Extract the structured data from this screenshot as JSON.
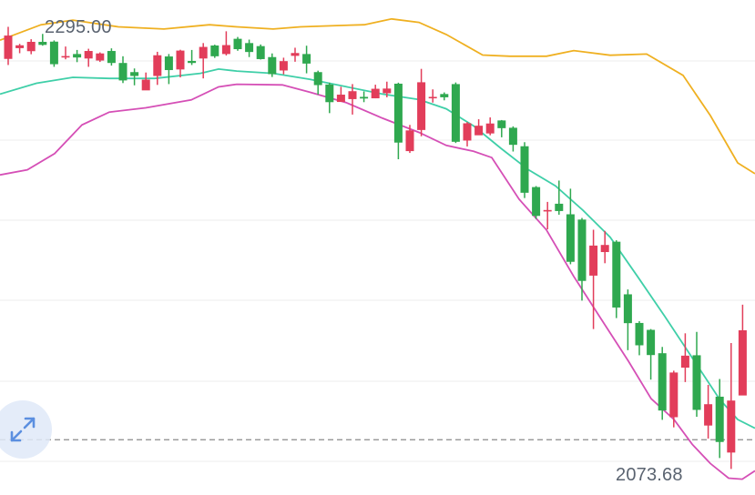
{
  "chart": {
    "max_label": "2295.00",
    "min_label": "2073.68"
  },
  "colors": {
    "up": "#e23d5a",
    "down": "#2fa84f",
    "upper_band": "#efb021",
    "middle_band": "#3fcfa8",
    "lower_band": "#d54fb6",
    "grid": "#ececec",
    "reference_line": "#8a8a8a",
    "expand_icon": "#5b8fe0"
  },
  "icons": {
    "expand": "expand-arrows-icon"
  },
  "chart_data": {
    "type": "candlestick",
    "y_range": [
      2063.5,
      2307.2
    ],
    "reference_level": 2090.7,
    "max_price": 2295.0,
    "min_price": 2073.68,
    "candles": [
      [
        2278.2,
        2289.7,
        2294.0,
        2275.2
      ],
      [
        2283.5,
        2284.9,
        2285.6,
        2281.0
      ],
      [
        2282.0,
        2286.6,
        2287.9,
        2280.5
      ],
      [
        2286.6,
        2285.1,
        2290.5,
        2284.7
      ],
      [
        2286.7,
        2275.6,
        2287.3,
        2274.3
      ],
      [
        2279.6,
        2279.6,
        2284.3,
        2278.0
      ],
      [
        2280.6,
        2278.9,
        2282.6,
        2276.6
      ],
      [
        2278.4,
        2282.1,
        2283.2,
        2274.3
      ],
      [
        2277.4,
        2280.9,
        2281.4,
        2276.7
      ],
      [
        2282.1,
        2276.2,
        2283.4,
        2274.9
      ],
      [
        2276.2,
        2267.6,
        2279.5,
        2266.3
      ],
      [
        2271.7,
        2269.8,
        2273.5,
        2265.2
      ],
      [
        2262.7,
        2268.0,
        2271.5,
        2262.9
      ],
      [
        2269.8,
        2280.0,
        2281.7,
        2265.4
      ],
      [
        2279.4,
        2272.7,
        2280.6,
        2265.8
      ],
      [
        2273.0,
        2282.3,
        2282.7,
        2269.1
      ],
      [
        2277.2,
        2276.2,
        2282.6,
        2275.2
      ],
      [
        2278.4,
        2284.1,
        2286.0,
        2268.6
      ],
      [
        2284.8,
        2279.5,
        2285.2,
        2278.7
      ],
      [
        2280.6,
        2285.0,
        2291.8,
        2279.9
      ],
      [
        2288.1,
        2283.0,
        2289.0,
        2282.2
      ],
      [
        2286.0,
        2281.6,
        2287.7,
        2279.1
      ],
      [
        2284.5,
        2278.1,
        2285.3,
        2277.9
      ],
      [
        2279.1,
        2270.7,
        2280.9,
        2269.3
      ],
      [
        2272.5,
        2277.1,
        2278.8,
        2270.6
      ],
      [
        2279.7,
        2281.1,
        2283.7,
        2276.8
      ],
      [
        2280.6,
        2275.9,
        2284.7,
        2271.1
      ],
      [
        2271.7,
        2265.3,
        2272.4,
        2260.7
      ],
      [
        2265.6,
        2256.9,
        2266.5,
        2251.5
      ],
      [
        2257.0,
        2260.6,
        2264.5,
        2257.2
      ],
      [
        2258.4,
        2262.3,
        2265.8,
        2250.8
      ],
      [
        2259.5,
        2258.7,
        2262.2,
        2256.9
      ],
      [
        2258.8,
        2263.5,
        2265.5,
        2258.8
      ],
      [
        2261.3,
        2263.6,
        2267.0,
        2259.3
      ],
      [
        2266.0,
        2237.0,
        2266.5,
        2228.8
      ],
      [
        2232.8,
        2243.0,
        2245.7,
        2231.9
      ],
      [
        2243.2,
        2266.7,
        2273.3,
        2240.1
      ],
      [
        2259.5,
        2259.5,
        2263.2,
        2256.7
      ],
      [
        2260.9,
        2259.3,
        2261.7,
        2257.8
      ],
      [
        2265.8,
        2237.4,
        2266.6,
        2236.8
      ],
      [
        2238.0,
        2246.5,
        2247.1,
        2235.1
      ],
      [
        2240.6,
        2245.3,
        2248.5,
        2241.3
      ],
      [
        2241.5,
        2246.4,
        2249.4,
        2240.6
      ],
      [
        2247.9,
        2244.1,
        2248.1,
        2239.6
      ],
      [
        2244.3,
        2235.9,
        2245.0,
        2232.6
      ],
      [
        2235.2,
        2212.3,
        2237.2,
        2209.7
      ],
      [
        2215.1,
        2200.9,
        2215.6,
        2199.4
      ],
      [
        2203.8,
        2203.8,
        2207.8,
        2194.3
      ],
      [
        2206.9,
        2203.3,
        2218.3,
        2201.5
      ],
      [
        2201.7,
        2178.3,
        2214.3,
        2177.1
      ],
      [
        2199.1,
        2168.9,
        2199.9,
        2159.2
      ],
      [
        2171.5,
        2186.3,
        2194.1,
        2145.2
      ],
      [
        2183.1,
        2186.6,
        2193.5,
        2177.6
      ],
      [
        2188.2,
        2155.8,
        2188.9,
        2150.6
      ],
      [
        2162.3,
        2148.1,
        2164.7,
        2134.8
      ],
      [
        2148.2,
        2137.2,
        2149.1,
        2132.3
      ],
      [
        2144.8,
        2132.4,
        2145.2,
        2120.3
      ],
      [
        2133.3,
        2105.1,
        2136.4,
        2100.5
      ],
      [
        2101.8,
        2123.8,
        2124.7,
        2096.8
      ],
      [
        2126.2,
        2132.1,
        2143.1,
        2119.1
      ],
      [
        2132.3,
        2105.4,
        2143.8,
        2102.0
      ],
      [
        2097.7,
        2108.2,
        2117.7,
        2091.3
      ],
      [
        2111.9,
        2089.6,
        2120.6,
        2081.7
      ],
      [
        2084.4,
        2110.0,
        2138.3,
        2076.3
      ],
      [
        2112.5,
        2144.6,
        2157.2,
        2112.7
      ]
    ],
    "upper_band": [
      [
        0,
        2287.4
      ],
      [
        45,
        2295.0
      ],
      [
        80,
        2297.3
      ],
      [
        130,
        2294.0
      ],
      [
        180,
        2292.9
      ],
      [
        230,
        2295.0
      ],
      [
        260,
        2294.0
      ],
      [
        300,
        2292.9
      ],
      [
        330,
        2294.0
      ],
      [
        370,
        2294.6
      ],
      [
        400,
        2295.0
      ],
      [
        430,
        2297.9
      ],
      [
        460,
        2296.2
      ],
      [
        490,
        2290.2
      ],
      [
        530,
        2280.1
      ],
      [
        560,
        2279.5
      ],
      [
        600,
        2279.5
      ],
      [
        630,
        2282.3
      ],
      [
        670,
        2280.0
      ],
      [
        710,
        2280.6
      ],
      [
        750,
        2270.1
      ],
      [
        780,
        2250.3
      ],
      [
        810,
        2227.0
      ],
      [
        829,
        2221.7
      ]
    ],
    "middle_band": [
      [
        0,
        2260.9
      ],
      [
        40,
        2266.2
      ],
      [
        80,
        2269.1
      ],
      [
        120,
        2268.6
      ],
      [
        170,
        2268.6
      ],
      [
        220,
        2271.1
      ],
      [
        240,
        2273.2
      ],
      [
        260,
        2272.2
      ],
      [
        300,
        2271.1
      ],
      [
        340,
        2268.2
      ],
      [
        380,
        2264.5
      ],
      [
        420,
        2260.9
      ],
      [
        460,
        2258.2
      ],
      [
        490,
        2253.6
      ],
      [
        520,
        2245.2
      ],
      [
        550,
        2234.2
      ],
      [
        580,
        2223.7
      ],
      [
        610,
        2215.7
      ],
      [
        640,
        2203.7
      ],
      [
        670,
        2190.4
      ],
      [
        700,
        2171.1
      ],
      [
        730,
        2151.4
      ],
      [
        760,
        2131.1
      ],
      [
        790,
        2110.7
      ],
      [
        810,
        2100.7
      ],
      [
        829,
        2096.4
      ]
    ],
    "lower_band": [
      [
        0,
        2221.1
      ],
      [
        30,
        2223.6
      ],
      [
        60,
        2231.6
      ],
      [
        90,
        2245.7
      ],
      [
        120,
        2252.0
      ],
      [
        160,
        2254.1
      ],
      [
        210,
        2258.0
      ],
      [
        240,
        2264.4
      ],
      [
        260,
        2265.7
      ],
      [
        310,
        2265.4
      ],
      [
        340,
        2261.8
      ],
      [
        380,
        2256.7
      ],
      [
        420,
        2249.0
      ],
      [
        460,
        2242.0
      ],
      [
        490,
        2235.6
      ],
      [
        520,
        2232.7
      ],
      [
        540,
        2229.6
      ],
      [
        570,
        2209.1
      ],
      [
        600,
        2194.0
      ],
      [
        630,
        2171.1
      ],
      [
        660,
        2150.2
      ],
      [
        690,
        2129.4
      ],
      [
        715,
        2110.9
      ],
      [
        740,
        2100.7
      ],
      [
        760,
        2088.5
      ],
      [
        780,
        2079.0
      ],
      [
        800,
        2071.8
      ],
      [
        815,
        2071.3
      ],
      [
        829,
        2075.4
      ]
    ]
  }
}
